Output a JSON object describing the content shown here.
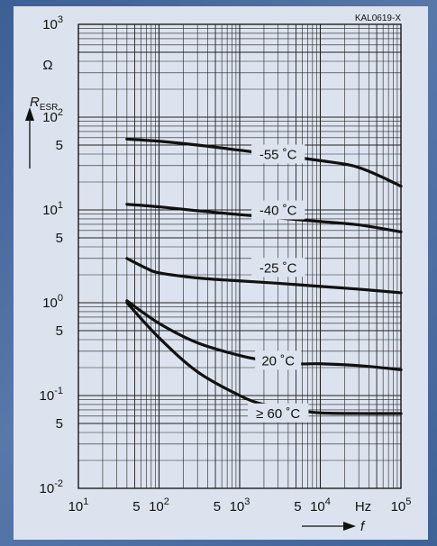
{
  "chart_data": {
    "type": "line",
    "title": "",
    "figure_id": "KAL0619-X",
    "xlabel": "f",
    "xunit": "Hz",
    "ylabel_main": "R",
    "ylabel_sub": "ESR",
    "yunit": "Ω",
    "xscale": "log",
    "yscale": "log",
    "xlim": [
      10,
      100000
    ],
    "ylim": [
      0.01,
      1000
    ],
    "grid": true,
    "x_tick_labels": [
      {
        "x": 10,
        "base": "10",
        "exp": "1"
      },
      {
        "x": 50,
        "pre": "5",
        "base": "",
        "exp": ""
      },
      {
        "x": 100,
        "base": "10",
        "exp": "2"
      },
      {
        "x": 500,
        "pre": "5",
        "base": "",
        "exp": ""
      },
      {
        "x": 1000,
        "base": "10",
        "exp": "3"
      },
      {
        "x": 5000,
        "pre": "5",
        "base": "",
        "exp": ""
      },
      {
        "x": 10000,
        "base": "10",
        "exp": "4"
      },
      {
        "x": 100000,
        "base": "10",
        "exp": "5"
      }
    ],
    "y_tick_labels": [
      {
        "y": 1000,
        "base": "10",
        "exp": "3"
      },
      {
        "y": 100,
        "base": "10",
        "exp": "2"
      },
      {
        "y": 50,
        "text": "5"
      },
      {
        "y": 10,
        "base": "10",
        "exp": "1"
      },
      {
        "y": 5,
        "text": "5"
      },
      {
        "y": 1,
        "base": "10",
        "exp": "0"
      },
      {
        "y": 0.5,
        "text": "5"
      },
      {
        "y": 0.1,
        "base": "10",
        "exp": "-1"
      },
      {
        "y": 0.05,
        "text": "5"
      },
      {
        "y": 0.01,
        "base": "10",
        "exp": "-2"
      }
    ],
    "series": [
      {
        "name": "-55 ˚C",
        "label_at": [
          3000,
          40
        ],
        "x": [
          40,
          100,
          300,
          1000,
          3000,
          10000,
          25000,
          50000,
          100000
        ],
        "y": [
          58,
          55,
          50,
          44,
          39,
          34,
          30,
          24,
          18
        ]
      },
      {
        "name": "-40 ˚C",
        "label_at": [
          3000,
          10
        ],
        "x": [
          40,
          100,
          300,
          1000,
          3000,
          10000,
          30000,
          100000
        ],
        "y": [
          11.5,
          10.8,
          9.8,
          8.9,
          8.2,
          7.5,
          6.9,
          5.8
        ]
      },
      {
        "name": "-25 ˚C",
        "label_at": [
          3000,
          2.4
        ],
        "x": [
          40,
          70,
          100,
          300,
          1000,
          3000,
          10000,
          30000,
          100000
        ],
        "y": [
          3.0,
          2.35,
          2.1,
          1.85,
          1.72,
          1.62,
          1.5,
          1.4,
          1.28
        ]
      },
      {
        "name": "20 ˚C",
        "label_at": [
          3000,
          0.24
        ],
        "x": [
          40,
          100,
          300,
          1000,
          2000,
          5000,
          10000,
          30000,
          100000
        ],
        "y": [
          1.05,
          0.6,
          0.37,
          0.27,
          0.24,
          0.22,
          0.22,
          0.21,
          0.19
        ]
      },
      {
        "name": "≥ 60 ˚C",
        "label_at": [
          3000,
          0.065
        ],
        "x": [
          40,
          100,
          300,
          1000,
          2000,
          5000,
          10000,
          30000,
          100000
        ],
        "y": [
          1.0,
          0.42,
          0.18,
          0.1,
          0.08,
          0.07,
          0.065,
          0.064,
          0.064
        ]
      }
    ]
  }
}
